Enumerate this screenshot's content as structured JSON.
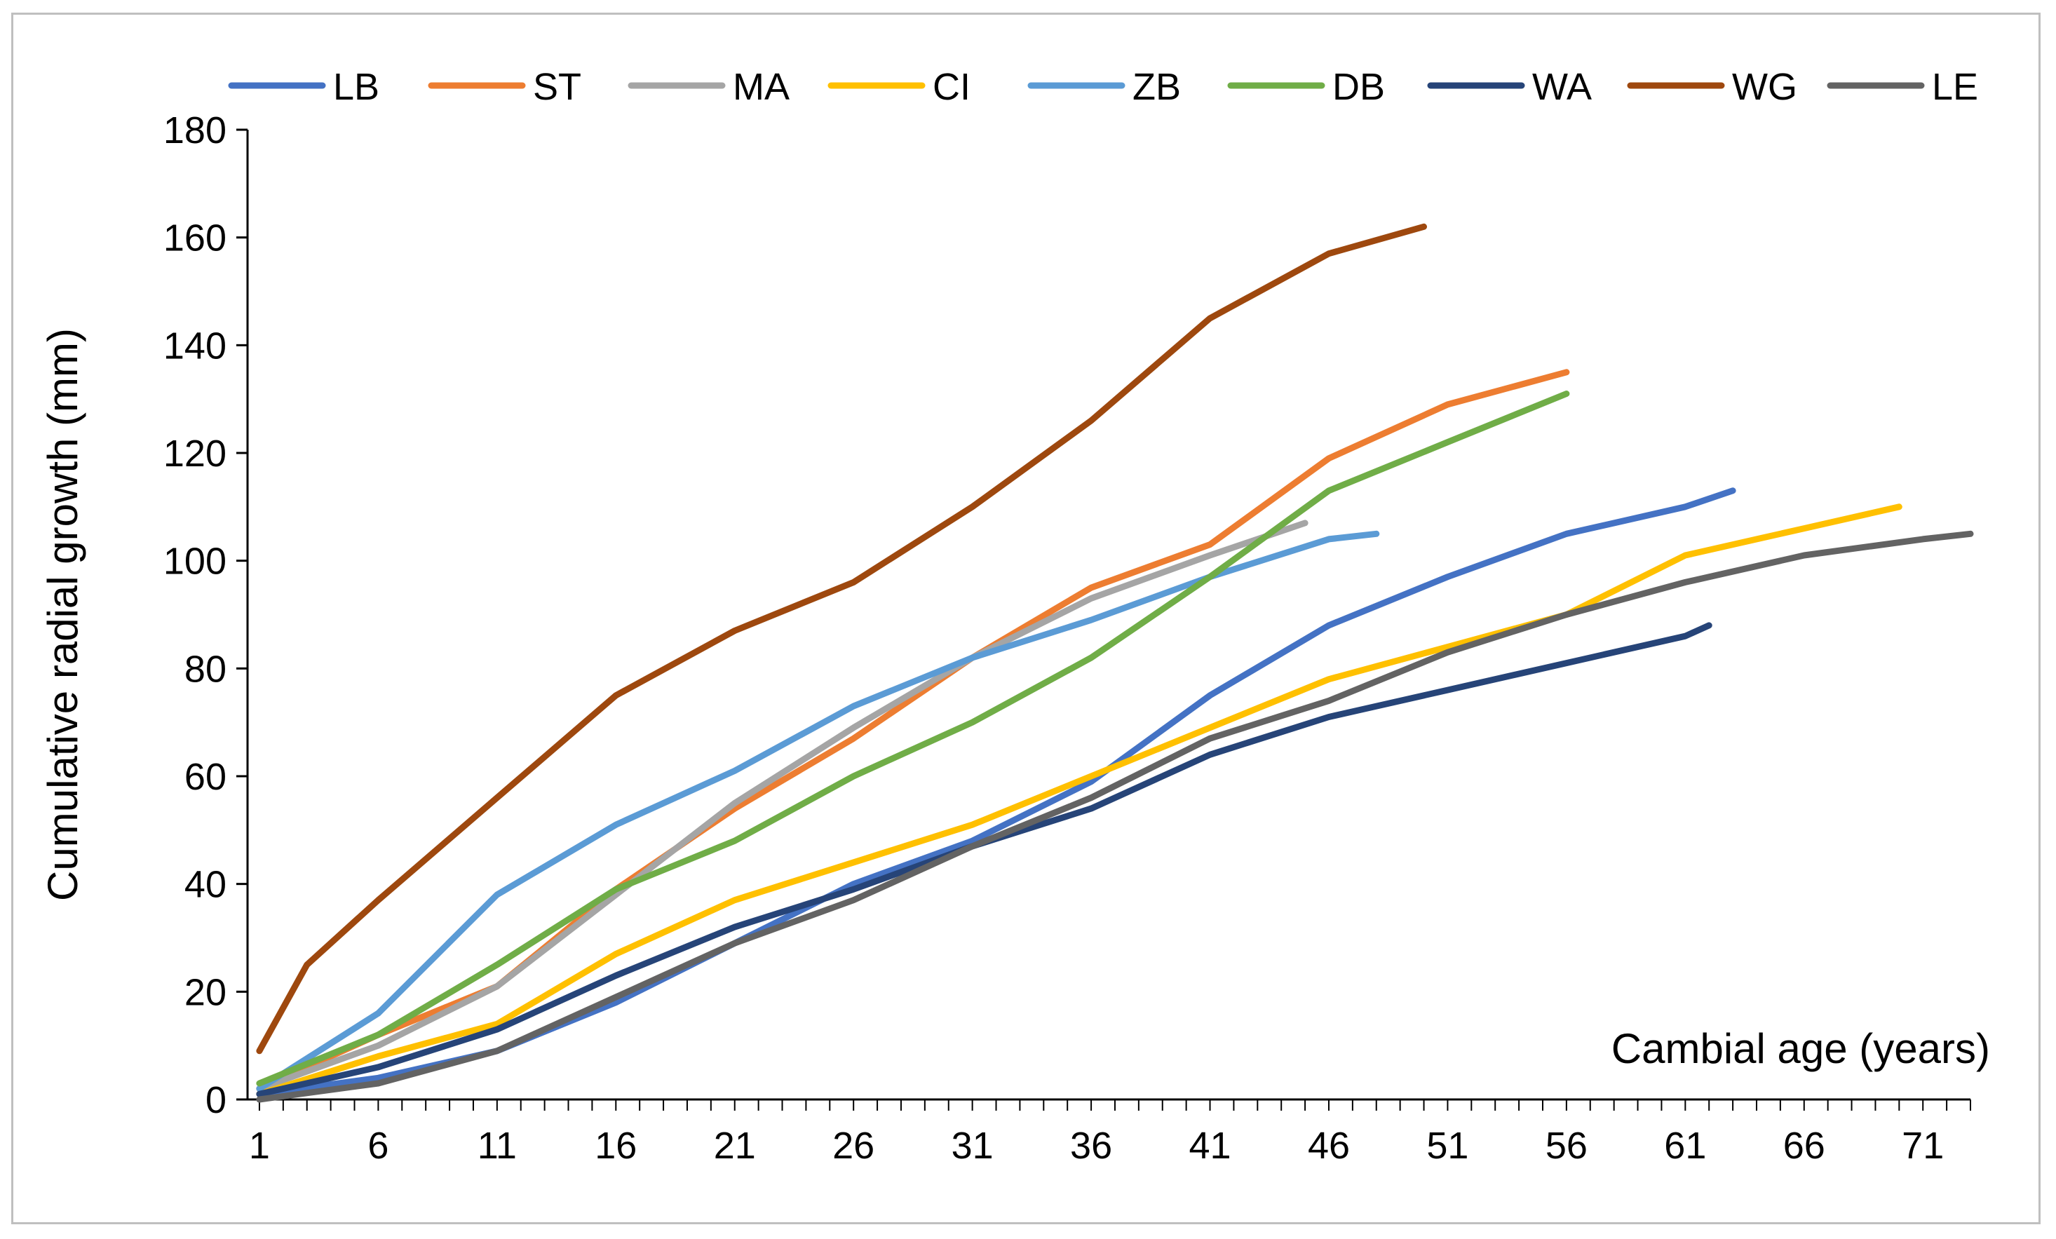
{
  "chart_data": {
    "type": "line",
    "title": "",
    "xlabel": "Cambial age (years)",
    "ylabel": "Cumulative radial growth (mm)",
    "xlim": [
      0.5,
      73
    ],
    "ylim": [
      0,
      180
    ],
    "x_ticks": [
      1,
      6,
      11,
      16,
      21,
      26,
      31,
      36,
      41,
      46,
      51,
      56,
      61,
      66,
      71
    ],
    "y_ticks": [
      0,
      20,
      40,
      60,
      80,
      100,
      120,
      140,
      160,
      180
    ],
    "grid": false,
    "legend_position": "top",
    "series": [
      {
        "name": "LB",
        "color": "#4472C4",
        "points": [
          [
            1,
            1
          ],
          [
            6,
            4
          ],
          [
            11,
            9
          ],
          [
            16,
            18
          ],
          [
            21,
            29
          ],
          [
            26,
            40
          ],
          [
            31,
            48
          ],
          [
            36,
            59
          ],
          [
            41,
            75
          ],
          [
            46,
            88
          ],
          [
            51,
            97
          ],
          [
            56,
            105
          ],
          [
            61,
            110
          ],
          [
            63,
            113
          ]
        ]
      },
      {
        "name": "ST",
        "color": "#ED7D31",
        "points": [
          [
            1,
            2
          ],
          [
            6,
            12
          ],
          [
            11,
            21
          ],
          [
            16,
            39
          ],
          [
            21,
            54
          ],
          [
            26,
            67
          ],
          [
            31,
            82
          ],
          [
            36,
            95
          ],
          [
            41,
            103
          ],
          [
            46,
            119
          ],
          [
            51,
            129
          ],
          [
            56,
            135
          ]
        ]
      },
      {
        "name": "MA",
        "color": "#A5A5A5",
        "points": [
          [
            1,
            2
          ],
          [
            6,
            10
          ],
          [
            11,
            21
          ],
          [
            16,
            38
          ],
          [
            21,
            55
          ],
          [
            26,
            69
          ],
          [
            31,
            82
          ],
          [
            36,
            93
          ],
          [
            41,
            101
          ],
          [
            45,
            107
          ]
        ]
      },
      {
        "name": "CI",
        "color": "#FFC000",
        "points": [
          [
            1,
            1
          ],
          [
            6,
            8
          ],
          [
            11,
            14
          ],
          [
            16,
            27
          ],
          [
            21,
            37
          ],
          [
            26,
            44
          ],
          [
            31,
            51
          ],
          [
            36,
            60
          ],
          [
            41,
            69
          ],
          [
            46,
            78
          ],
          [
            51,
            84
          ],
          [
            56,
            90
          ],
          [
            61,
            101
          ],
          [
            66,
            106
          ],
          [
            70,
            110
          ]
        ]
      },
      {
        "name": "ZB",
        "color": "#5B9BD5",
        "points": [
          [
            1,
            2
          ],
          [
            6,
            16
          ],
          [
            11,
            38
          ],
          [
            16,
            51
          ],
          [
            21,
            61
          ],
          [
            26,
            73
          ],
          [
            31,
            82
          ],
          [
            36,
            89
          ],
          [
            41,
            97
          ],
          [
            46,
            104
          ],
          [
            48,
            105
          ]
        ]
      },
      {
        "name": "DB",
        "color": "#70AD47",
        "points": [
          [
            1,
            3
          ],
          [
            6,
            12
          ],
          [
            11,
            25
          ],
          [
            16,
            39
          ],
          [
            21,
            48
          ],
          [
            26,
            60
          ],
          [
            31,
            70
          ],
          [
            36,
            82
          ],
          [
            41,
            97
          ],
          [
            46,
            113
          ],
          [
            51,
            122
          ],
          [
            56,
            131
          ]
        ]
      },
      {
        "name": "WA",
        "color": "#264478",
        "points": [
          [
            1,
            1
          ],
          [
            6,
            6
          ],
          [
            11,
            13
          ],
          [
            16,
            23
          ],
          [
            21,
            32
          ],
          [
            26,
            39
          ],
          [
            31,
            47
          ],
          [
            36,
            54
          ],
          [
            41,
            64
          ],
          [
            46,
            71
          ],
          [
            51,
            76
          ],
          [
            56,
            81
          ],
          [
            61,
            86
          ],
          [
            62,
            88
          ]
        ]
      },
      {
        "name": "WG",
        "color": "#9E480E",
        "points": [
          [
            1,
            9
          ],
          [
            3,
            25
          ],
          [
            6,
            37
          ],
          [
            11,
            56
          ],
          [
            16,
            75
          ],
          [
            21,
            87
          ],
          [
            26,
            96
          ],
          [
            31,
            110
          ],
          [
            36,
            126
          ],
          [
            41,
            145
          ],
          [
            46,
            157
          ],
          [
            50,
            162
          ]
        ]
      },
      {
        "name": "LE",
        "color": "#636363",
        "points": [
          [
            1,
            0
          ],
          [
            6,
            3
          ],
          [
            11,
            9
          ],
          [
            16,
            19
          ],
          [
            21,
            29
          ],
          [
            26,
            37
          ],
          [
            31,
            47
          ],
          [
            36,
            56
          ],
          [
            41,
            67
          ],
          [
            46,
            74
          ],
          [
            51,
            83
          ],
          [
            56,
            90
          ],
          [
            61,
            96
          ],
          [
            66,
            101
          ],
          [
            71,
            104
          ],
          [
            73,
            105
          ]
        ]
      }
    ]
  }
}
